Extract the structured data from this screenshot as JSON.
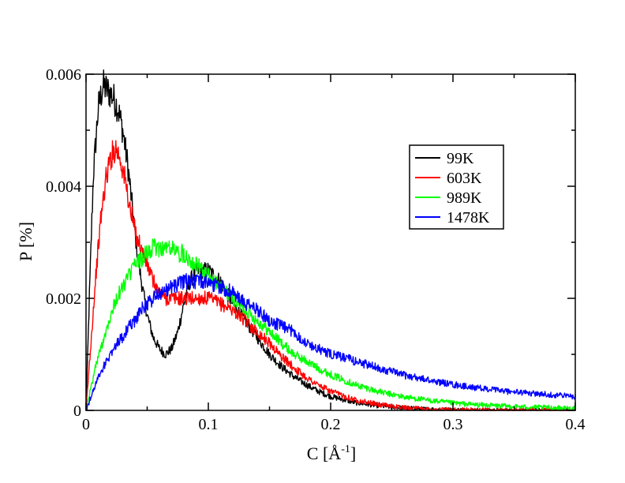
{
  "chart_data": {
    "type": "line",
    "title": "",
    "xlabel": "C [Å",
    "xlabel_sup": "-1",
    "xlabel_suffix": "]",
    "ylabel": "P [%]",
    "xlim": [
      0,
      0.4
    ],
    "ylim": [
      0,
      0.006
    ],
    "grid": false,
    "legend_placement": "top-right",
    "x_ticks": [
      {
        "value": 0,
        "label": "0"
      },
      {
        "value": 0.1,
        "label": "0.1"
      },
      {
        "value": 0.2,
        "label": "0.2"
      },
      {
        "value": 0.3,
        "label": "0.3"
      },
      {
        "value": 0.4,
        "label": "0.4"
      }
    ],
    "y_ticks": [
      {
        "value": 0,
        "label": "0"
      },
      {
        "value": 0.002,
        "label": "0.002"
      },
      {
        "value": 0.004,
        "label": "0.004"
      },
      {
        "value": 0.006,
        "label": "0.006"
      }
    ],
    "series": [
      {
        "name": "99K",
        "color": "#000000",
        "x": [
          0.0,
          0.003,
          0.006,
          0.01,
          0.014,
          0.018,
          0.022,
          0.026,
          0.03,
          0.034,
          0.038,
          0.042,
          0.046,
          0.05,
          0.055,
          0.06,
          0.065,
          0.07,
          0.075,
          0.08,
          0.085,
          0.09,
          0.095,
          0.1,
          0.105,
          0.11,
          0.115,
          0.12,
          0.13,
          0.14,
          0.15,
          0.16,
          0.17,
          0.18,
          0.19,
          0.2,
          0.22,
          0.24,
          0.26,
          0.28,
          0.3,
          0.33,
          0.36,
          0.4
        ],
        "y": [
          0.0,
          0.0022,
          0.0042,
          0.0054,
          0.0058,
          0.0057,
          0.0056,
          0.0054,
          0.005,
          0.0044,
          0.0036,
          0.0028,
          0.0022,
          0.0017,
          0.0013,
          0.0011,
          0.001,
          0.0011,
          0.0014,
          0.0019,
          0.0023,
          0.0025,
          0.0025,
          0.0025,
          0.0024,
          0.0023,
          0.0021,
          0.0019,
          0.0016,
          0.0013,
          0.001,
          0.00078,
          0.0006,
          0.00046,
          0.00034,
          0.00025,
          0.00014,
          8e-05,
          4e-05,
          2e-05,
          1e-05,
          0.0,
          0.0,
          0.0
        ]
      },
      {
        "name": "603K",
        "color": "#ff0000",
        "x": [
          0.0,
          0.004,
          0.008,
          0.012,
          0.016,
          0.02,
          0.024,
          0.028,
          0.032,
          0.036,
          0.04,
          0.045,
          0.05,
          0.055,
          0.06,
          0.065,
          0.07,
          0.08,
          0.09,
          0.1,
          0.11,
          0.12,
          0.13,
          0.14,
          0.15,
          0.16,
          0.17,
          0.18,
          0.19,
          0.2,
          0.22,
          0.24,
          0.26,
          0.28,
          0.3,
          0.33,
          0.36,
          0.4
        ],
        "y": [
          0.0,
          0.0012,
          0.0024,
          0.0034,
          0.0041,
          0.0045,
          0.0047,
          0.0045,
          0.0041,
          0.0036,
          0.0032,
          0.0029,
          0.0026,
          0.0023,
          0.0021,
          0.002,
          0.002,
          0.002,
          0.002,
          0.002,
          0.0019,
          0.0018,
          0.0016,
          0.0014,
          0.0012,
          0.00096,
          0.00076,
          0.00059,
          0.00045,
          0.00034,
          0.00019,
          0.0001,
          5e-05,
          2.5e-05,
          1e-05,
          5e-06,
          2e-06,
          0.0
        ]
      },
      {
        "name": "989K",
        "color": "#00ff00",
        "x": [
          0.0,
          0.004,
          0.008,
          0.012,
          0.016,
          0.02,
          0.025,
          0.03,
          0.035,
          0.04,
          0.045,
          0.05,
          0.055,
          0.06,
          0.065,
          0.07,
          0.075,
          0.08,
          0.09,
          0.1,
          0.11,
          0.12,
          0.13,
          0.14,
          0.15,
          0.16,
          0.17,
          0.18,
          0.19,
          0.2,
          0.22,
          0.24,
          0.26,
          0.28,
          0.3,
          0.32,
          0.34,
          0.36,
          0.38,
          0.4
        ],
        "y": [
          0.0,
          0.0004,
          0.0008,
          0.0011,
          0.0014,
          0.0017,
          0.002,
          0.0022,
          0.0024,
          0.0026,
          0.0027,
          0.0028,
          0.0029,
          0.0029,
          0.0029,
          0.0029,
          0.0028,
          0.0028,
          0.0026,
          0.0024,
          0.0022,
          0.002,
          0.0018,
          0.0016,
          0.0014,
          0.0012,
          0.001,
          0.00088,
          0.00075,
          0.00064,
          0.00046,
          0.00033,
          0.00024,
          0.00018,
          0.00013,
          0.0001,
          8e-05,
          6e-05,
          5e-05,
          4e-05
        ]
      },
      {
        "name": "1478K",
        "color": "#0000ff",
        "x": [
          0.0,
          0.005,
          0.01,
          0.015,
          0.02,
          0.025,
          0.03,
          0.035,
          0.04,
          0.045,
          0.05,
          0.06,
          0.07,
          0.08,
          0.09,
          0.1,
          0.11,
          0.12,
          0.13,
          0.14,
          0.15,
          0.16,
          0.17,
          0.18,
          0.19,
          0.2,
          0.21,
          0.22,
          0.24,
          0.26,
          0.28,
          0.3,
          0.32,
          0.34,
          0.36,
          0.38,
          0.4
        ],
        "y": [
          0.0,
          0.0003,
          0.0006,
          0.0008,
          0.001,
          0.0012,
          0.0013,
          0.0015,
          0.0016,
          0.0018,
          0.0019,
          0.0021,
          0.0022,
          0.0023,
          0.0023,
          0.0023,
          0.0022,
          0.0021,
          0.0019,
          0.0018,
          0.0016,
          0.0015,
          0.0014,
          0.0012,
          0.0011,
          0.001,
          0.00095,
          0.00088,
          0.00075,
          0.00063,
          0.00054,
          0.00046,
          0.0004,
          0.00035,
          0.00031,
          0.00028,
          0.00025
        ]
      }
    ]
  }
}
